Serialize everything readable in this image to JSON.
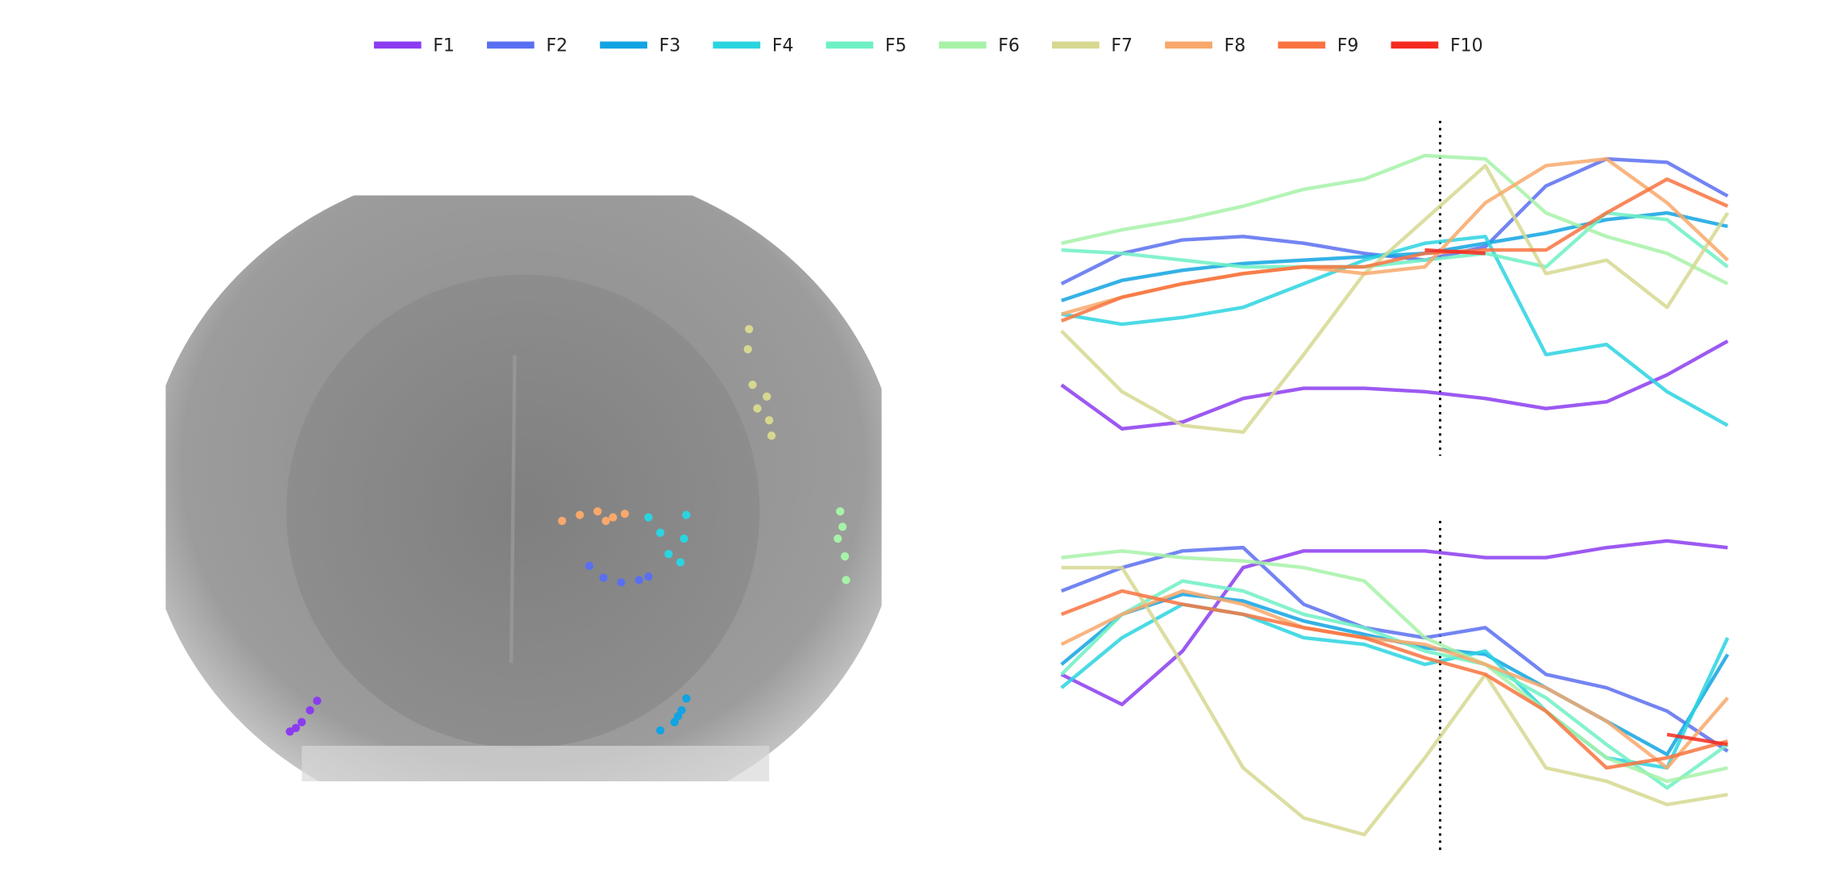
{
  "chart_data": [
    {
      "type": "line",
      "ylim": [
        0,
        100
      ],
      "series": [
        {
          "name": "F1",
          "color": "#8b3cf0",
          "values": [
            21,
            8,
            10,
            17,
            20,
            20,
            19,
            17,
            14,
            16,
            24,
            34
          ]
        },
        {
          "name": "F2",
          "color": "#5a6ff0",
          "values": [
            51,
            60,
            64,
            65,
            63,
            60,
            58,
            62,
            80,
            88,
            87,
            77
          ]
        },
        {
          "name": "F3",
          "color": "#12a3e2",
          "values": [
            46,
            52,
            55,
            57,
            58,
            59,
            60,
            63,
            66,
            70,
            72,
            68
          ]
        },
        {
          "name": "F4",
          "color": "#2ad4e0",
          "values": [
            42,
            39,
            41,
            44,
            51,
            58,
            63,
            65,
            30,
            33,
            19,
            9
          ]
        },
        {
          "name": "F5",
          "color": "#6ef0c4",
          "values": [
            61,
            60,
            58,
            56,
            56,
            56,
            58,
            60,
            56,
            72,
            70,
            56
          ]
        },
        {
          "name": "F6",
          "color": "#a6f2a8",
          "values": [
            63,
            67,
            70,
            74,
            79,
            82,
            89,
            88,
            72,
            65,
            60,
            51
          ]
        },
        {
          "name": "F7",
          "color": "#d6d890",
          "values": [
            37,
            19,
            9,
            7,
            30,
            54,
            70,
            86,
            54,
            58,
            44,
            72
          ]
        },
        {
          "name": "F8",
          "color": "#f8a86a",
          "values": [
            42,
            47,
            51,
            54,
            56,
            54,
            56,
            75,
            86,
            88,
            75,
            58
          ]
        },
        {
          "name": "F9",
          "color": "#f8733f",
          "values": [
            40,
            47,
            51,
            54,
            56,
            56,
            60,
            61,
            61,
            72,
            82,
            74
          ]
        },
        {
          "name": "F10",
          "color": "#f42a1e",
          "values": [
            null,
            null,
            null,
            null,
            null,
            null,
            61,
            60,
            null,
            null,
            null,
            null
          ]
        }
      ]
    },
    {
      "type": "line",
      "ylim": [
        0,
        100
      ],
      "series": [
        {
          "color": "#8b3cf0",
          "values": [
            54,
            45,
            61,
            86,
            91,
            91,
            91,
            89,
            89,
            92,
            94,
            92
          ]
        },
        {
          "color": "#5a6ff0",
          "values": [
            79,
            86,
            91,
            92,
            75,
            68,
            65,
            68,
            54,
            50,
            43,
            31
          ]
        },
        {
          "color": "#12a3e2",
          "values": [
            57,
            72,
            78,
            76,
            70,
            66,
            62,
            60,
            50,
            40,
            30,
            60
          ]
        },
        {
          "color": "#2ad4e0",
          "values": [
            50,
            65,
            75,
            72,
            65,
            63,
            57,
            61,
            43,
            29,
            26,
            65
          ]
        },
        {
          "color": "#6ef0c4",
          "values": [
            54,
            72,
            82,
            79,
            72,
            68,
            61,
            57,
            47,
            33,
            20,
            33
          ]
        },
        {
          "color": "#a6f2a8",
          "values": [
            89,
            91,
            89,
            88,
            86,
            82,
            65,
            57,
            43,
            29,
            22,
            26
          ]
        },
        {
          "color": "#d6d890",
          "values": [
            86,
            86,
            57,
            26,
            11,
            6,
            29,
            54,
            26,
            22,
            15,
            18
          ]
        },
        {
          "color": "#f8a86a",
          "values": [
            63,
            72,
            79,
            75,
            68,
            65,
            63,
            57,
            50,
            40,
            26,
            47
          ]
        },
        {
          "color": "#f8733f",
          "values": [
            72,
            79,
            75,
            72,
            68,
            65,
            59,
            54,
            43,
            26,
            29,
            34
          ]
        },
        {
          "color": "#f42a1e",
          "values": [
            null,
            null,
            null,
            null,
            null,
            null,
            null,
            null,
            null,
            null,
            36,
            33
          ]
        }
      ]
    },
    {
      "type": "scatter",
      "xlim": [
        0,
        605
      ],
      "ylim": [
        495,
        0
      ],
      "series": [
        {
          "color": "#8b3cf0",
          "x": [
            105,
            115,
            122,
            128,
            110
          ],
          "y": [
            453,
            445,
            435,
            427,
            450
          ]
        },
        {
          "color": "#5a6ff0",
          "x": [
            358,
            370,
            385,
            400,
            408
          ],
          "y": [
            313,
            323,
            327,
            325,
            322
          ]
        },
        {
          "color": "#12a3e2",
          "x": [
            418,
            430,
            436,
            440,
            433
          ],
          "y": [
            452,
            445,
            435,
            425,
            440
          ]
        },
        {
          "color": "#2ad4e0",
          "x": [
            408,
            418,
            425,
            435,
            440,
            438
          ],
          "y": [
            272,
            285,
            303,
            310,
            270,
            290
          ]
        },
        {
          "color": "#a6f2a8",
          "x": [
            570,
            572,
            568,
            574,
            575
          ],
          "y": [
            267,
            280,
            290,
            305,
            325
          ]
        },
        {
          "color": "#d6d890",
          "x": [
            493,
            492,
            496,
            500,
            508,
            510,
            512
          ],
          "y": [
            113,
            130,
            160,
            180,
            170,
            190,
            203
          ]
        },
        {
          "color": "#f8a86a",
          "x": [
            335,
            350,
            365,
            378,
            388,
            372
          ],
          "y": [
            275,
            270,
            267,
            272,
            269,
            275
          ]
        }
      ]
    }
  ]
}
